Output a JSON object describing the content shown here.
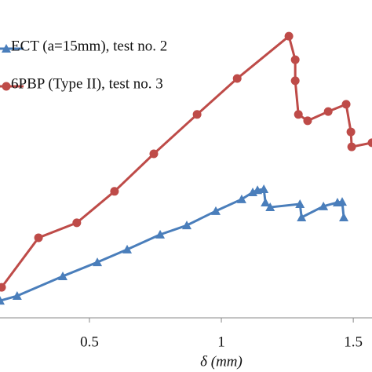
{
  "chart_data": {
    "type": "line",
    "x_label": "δ (mm)",
    "xlim": [
      0.161,
      1.571
    ],
    "xticks": [
      {
        "value": 0.5,
        "label": "0.5"
      },
      1,
      {
        "value": 1.5,
        "label": "1.5"
      }
    ],
    "ylim": [
      0,
      100
    ],
    "legend": "upper left",
    "series": [
      {
        "name": "ECT (a=15mm), test no. 2",
        "color": "#4a7ebb",
        "marker": "triangle",
        "x": [
          0.161,
          0.226,
          0.399,
          0.53,
          0.643,
          0.768,
          0.869,
          0.979,
          1.077,
          1.119,
          1.137,
          1.161,
          1.167,
          1.185,
          1.298,
          1.304,
          1.387,
          1.44,
          1.458,
          1.464
        ],
        "values": [
          5.4,
          6.9,
          13.1,
          17.5,
          21.5,
          26.2,
          29.1,
          33.6,
          37.3,
          39.5,
          40.2,
          40.5,
          36.3,
          34.8,
          35.8,
          31.6,
          35.1,
          36.3,
          36.5,
          31.6
        ]
      },
      {
        "name": "6PBP (Type II), test no. 3",
        "color": "#be4b48",
        "marker": "circle",
        "x": [
          0.167,
          0.307,
          0.452,
          0.595,
          0.744,
          0.908,
          1.06,
          1.256,
          1.28,
          1.28,
          1.292,
          1.327,
          1.405,
          1.473,
          1.491,
          1.494,
          1.571
        ],
        "values": [
          9.6,
          25.2,
          29.9,
          39.8,
          51.6,
          64.0,
          75.3,
          88.6,
          81.2,
          74.6,
          64.0,
          62.0,
          64.9,
          67.2,
          58.5,
          53.8,
          55.1
        ]
      }
    ]
  }
}
